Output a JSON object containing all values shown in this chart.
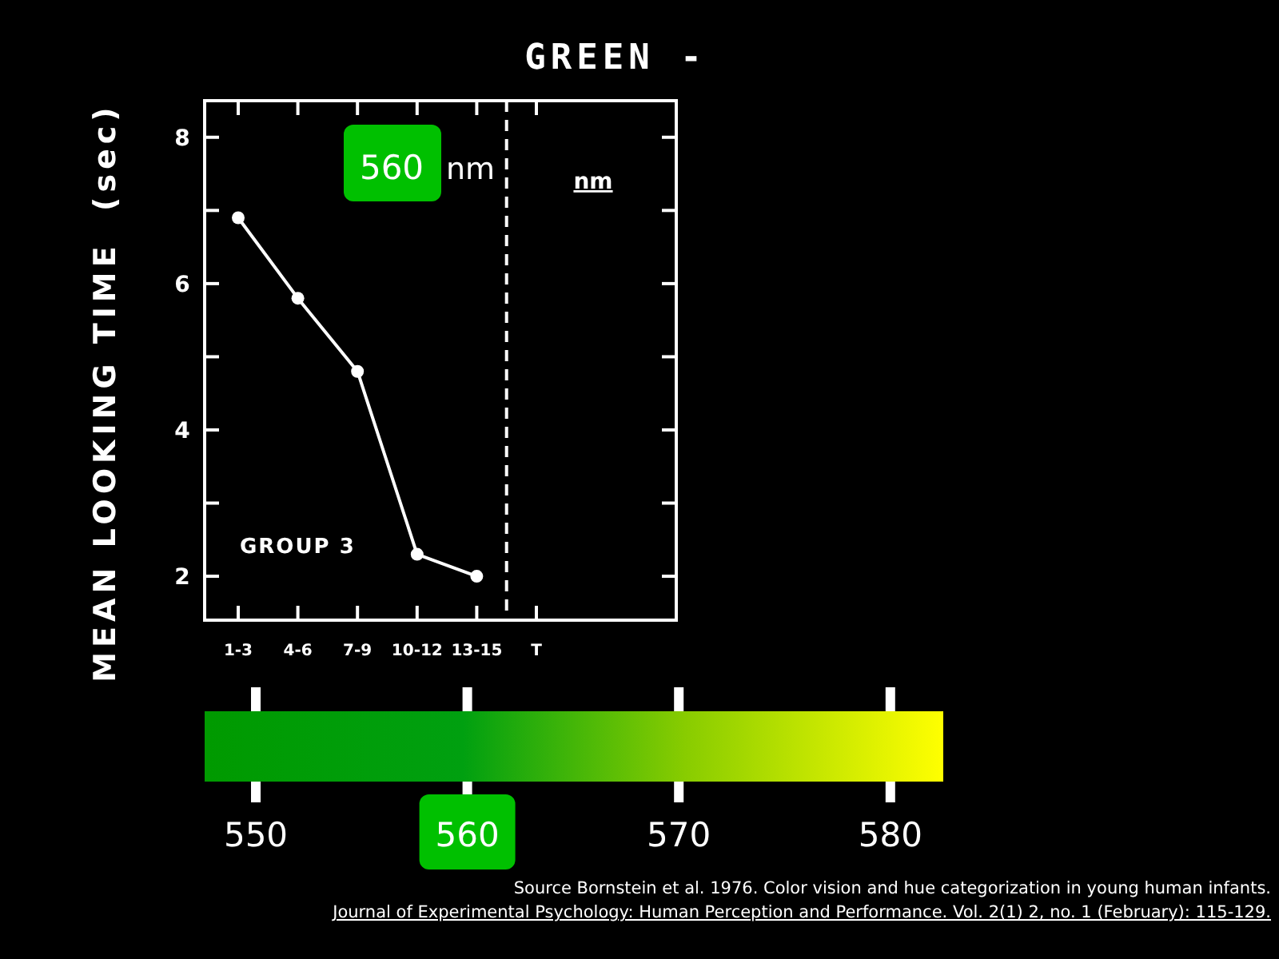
{
  "chart_data": {
    "type": "line",
    "title": "GREEN -",
    "ylabel": "MEAN LOOKING TIME  (sec)",
    "categories": [
      "1-3",
      "4-6",
      "7-9",
      "10-12",
      "13-15",
      "T"
    ],
    "series": [
      {
        "color": "#ffffff",
        "values": [
          6.9,
          5.8,
          4.8,
          2.3,
          2.0,
          null
        ]
      }
    ],
    "ylim": [
      1.4,
      8.5
    ],
    "yticks": [
      2,
      {
        "value": 3,
        "label": null
      },
      4,
      {
        "value": 5,
        "label": null
      },
      6,
      {
        "value": 7,
        "label": null
      },
      8
    ],
    "marker": "circle",
    "line_style": "solid",
    "annotations": [
      "560 nm",
      "nm",
      "GROUP 3",
      "550",
      "560",
      "570",
      "580",
      "Source Bornstein et al. 1976. Color vision and hue categorization in young human infants.",
      "Journal of Experimental Psychology: Human Perception and Performance. Vol. 2(1) 2, no. 1 (February): 115-129."
    ]
  }
}
